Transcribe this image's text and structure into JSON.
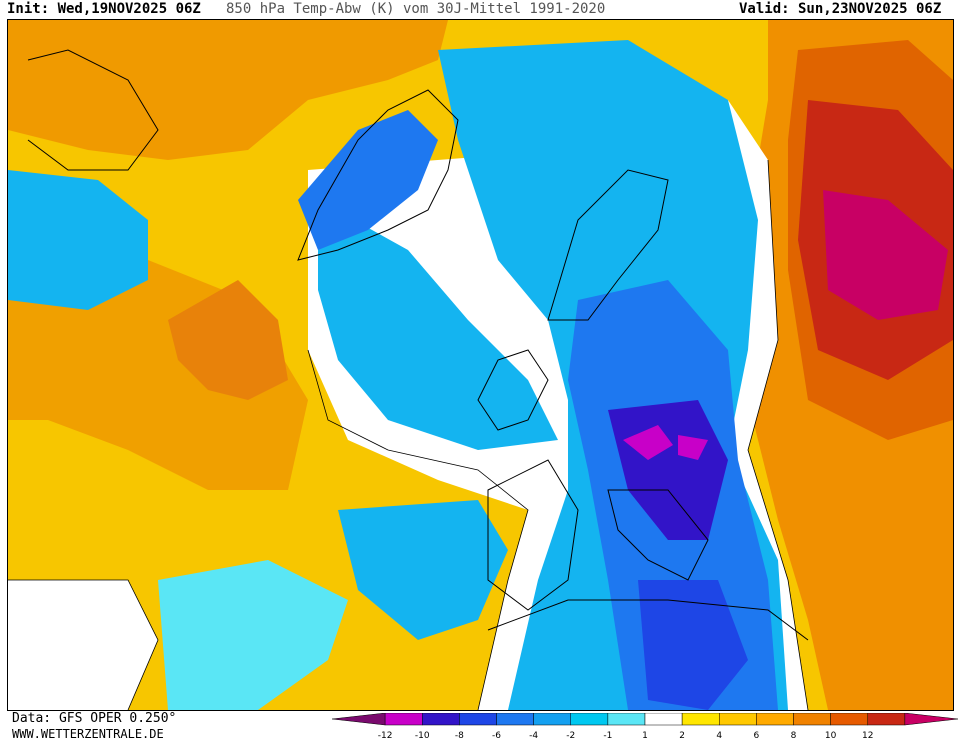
{
  "header": {
    "init": "Init: Wed,19NOV2025 06Z",
    "title": "850 hPa Temp-Abw (K) vom 30J-Mittel 1991-2020",
    "valid": "Valid: Sun,23NOV2025 06Z"
  },
  "footer": {
    "data_source": "Data: GFS OPER 0.250°",
    "website": "WWW.WETTERZENTRALE.DE"
  },
  "colorbar": {
    "colors": [
      "#7a0a6e",
      "#c800c8",
      "#3214c8",
      "#1e46e6",
      "#1e78f0",
      "#14a0f0",
      "#00c8f0",
      "#5ae6f5",
      "#ffffff",
      "#ffe600",
      "#ffc800",
      "#ffaa00",
      "#f08200",
      "#e65a00",
      "#c82814",
      "#c80064"
    ],
    "labels": [
      "-12",
      "-10",
      "-8",
      "-6",
      "-4",
      "-2",
      "-1",
      "1",
      "2",
      "4",
      "6",
      "8",
      "10",
      "12"
    ]
  }
}
